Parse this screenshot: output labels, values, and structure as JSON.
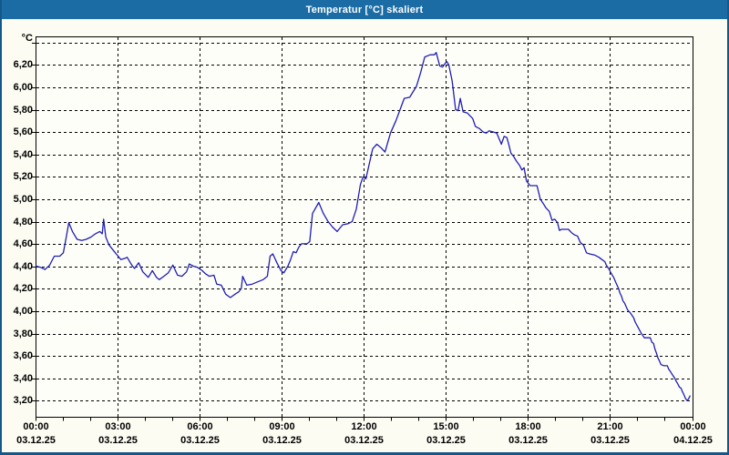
{
  "window": {
    "title": "Temperatur [°C] skaliert"
  },
  "colors": {
    "titlebar": "#1B6CA5",
    "window_border": "#14588A",
    "content_bg": "#FCFCF3",
    "plot_bg": "#FEFEF9",
    "grid": "#000000",
    "line": "#1E1EB4",
    "title_text": "#FFFFFF",
    "axis_text": "#000000"
  },
  "chart_data": {
    "type": "line",
    "title": "Temperatur [°C] skaliert",
    "unit_label": "°C",
    "xlabel": "",
    "ylabel": "°C",
    "grid": true,
    "legend_position": "none",
    "decimal_separator": ",",
    "ylim": [
      3.06,
      6.46
    ],
    "xlim_hours": [
      0,
      24
    ],
    "minor_tick_every_hours": 1,
    "y_ticks": [
      {
        "value": 6.4,
        "label": ""
      },
      {
        "value": 6.2,
        "label": "6,20"
      },
      {
        "value": 6.0,
        "label": "6,00"
      },
      {
        "value": 5.8,
        "label": "5,80"
      },
      {
        "value": 5.6,
        "label": "5,60"
      },
      {
        "value": 5.4,
        "label": "5,40"
      },
      {
        "value": 5.2,
        "label": "5,20"
      },
      {
        "value": 5.0,
        "label": "5,00"
      },
      {
        "value": 4.8,
        "label": "4,80"
      },
      {
        "value": 4.6,
        "label": "4,60"
      },
      {
        "value": 4.4,
        "label": "4,40"
      },
      {
        "value": 4.2,
        "label": "4,20"
      },
      {
        "value": 4.0,
        "label": "4,00"
      },
      {
        "value": 3.8,
        "label": "3,80"
      },
      {
        "value": 3.6,
        "label": "3,60"
      },
      {
        "value": 3.4,
        "label": "3,40"
      },
      {
        "value": 3.2,
        "label": "3,20"
      }
    ],
    "x_ticks": [
      {
        "hour": 0,
        "time": "00:00",
        "date": "03.12.25"
      },
      {
        "hour": 3,
        "time": "03:00",
        "date": "03.12.25"
      },
      {
        "hour": 6,
        "time": "06:00",
        "date": "03.12.25"
      },
      {
        "hour": 9,
        "time": "09:00",
        "date": "03.12.25"
      },
      {
        "hour": 12,
        "time": "12:00",
        "date": "03.12.25"
      },
      {
        "hour": 15,
        "time": "15:00",
        "date": "03.12.25"
      },
      {
        "hour": 18,
        "time": "18:00",
        "date": "03.12.25"
      },
      {
        "hour": 21,
        "time": "21:00",
        "date": "03.12.25"
      },
      {
        "hour": 24,
        "time": "00:00",
        "date": "04.12.25"
      }
    ],
    "series": [
      {
        "name": "Temperatur",
        "points": [
          [
            0,
            4.41
          ],
          [
            0.17,
            4.4
          ],
          [
            0.33,
            4.38
          ],
          [
            0.5,
            4.42
          ],
          [
            0.67,
            4.5
          ],
          [
            0.87,
            4.5
          ],
          [
            1,
            4.53
          ],
          [
            1.1,
            4.66
          ],
          [
            1.2,
            4.8
          ],
          [
            1.33,
            4.72
          ],
          [
            1.5,
            4.65
          ],
          [
            1.67,
            4.64
          ],
          [
            1.83,
            4.65
          ],
          [
            2,
            4.67
          ],
          [
            2.17,
            4.7
          ],
          [
            2.33,
            4.72
          ],
          [
            2.42,
            4.7
          ],
          [
            2.47,
            4.83
          ],
          [
            2.55,
            4.67
          ],
          [
            2.67,
            4.6
          ],
          [
            2.83,
            4.55
          ],
          [
            3,
            4.5
          ],
          [
            3.1,
            4.47
          ],
          [
            3.25,
            4.48
          ],
          [
            3.33,
            4.49
          ],
          [
            3.5,
            4.42
          ],
          [
            3.6,
            4.39
          ],
          [
            3.75,
            4.44
          ],
          [
            3.9,
            4.36
          ],
          [
            4.1,
            4.31
          ],
          [
            4.25,
            4.37
          ],
          [
            4.4,
            4.31
          ],
          [
            4.5,
            4.29
          ],
          [
            4.67,
            4.32
          ],
          [
            4.83,
            4.35
          ],
          [
            5,
            4.42
          ],
          [
            5.17,
            4.33
          ],
          [
            5.33,
            4.32
          ],
          [
            5.5,
            4.36
          ],
          [
            5.6,
            4.43
          ],
          [
            5.75,
            4.41
          ],
          [
            5.9,
            4.4
          ],
          [
            6.07,
            4.37
          ],
          [
            6.2,
            4.34
          ],
          [
            6.33,
            4.32
          ],
          [
            6.5,
            4.33
          ],
          [
            6.6,
            4.25
          ],
          [
            6.77,
            4.24
          ],
          [
            6.93,
            4.16
          ],
          [
            7.1,
            4.13
          ],
          [
            7.27,
            4.16
          ],
          [
            7.4,
            4.18
          ],
          [
            7.5,
            4.21
          ],
          [
            7.55,
            4.32
          ],
          [
            7.7,
            4.24
          ],
          [
            7.9,
            4.25
          ],
          [
            8.1,
            4.27
          ],
          [
            8.3,
            4.29
          ],
          [
            8.45,
            4.32
          ],
          [
            8.55,
            4.5
          ],
          [
            8.65,
            4.52
          ],
          [
            8.8,
            4.44
          ],
          [
            8.95,
            4.37
          ],
          [
            9.05,
            4.35
          ],
          [
            9.2,
            4.41
          ],
          [
            9.3,
            4.47
          ],
          [
            9.4,
            4.54
          ],
          [
            9.5,
            4.53
          ],
          [
            9.6,
            4.58
          ],
          [
            9.7,
            4.61
          ],
          [
            9.9,
            4.61
          ],
          [
            10,
            4.63
          ],
          [
            10.1,
            4.88
          ],
          [
            10.33,
            4.98
          ],
          [
            10.5,
            4.88
          ],
          [
            10.67,
            4.81
          ],
          [
            10.83,
            4.76
          ],
          [
            11,
            4.72
          ],
          [
            11.2,
            4.78
          ],
          [
            11.4,
            4.79
          ],
          [
            11.55,
            4.81
          ],
          [
            11.7,
            4.92
          ],
          [
            11.85,
            5.14
          ],
          [
            11.95,
            5.21
          ],
          [
            12.05,
            5.19
          ],
          [
            12.3,
            5.46
          ],
          [
            12.45,
            5.5
          ],
          [
            12.6,
            5.47
          ],
          [
            12.75,
            5.43
          ],
          [
            12.95,
            5.6
          ],
          [
            13.15,
            5.71
          ],
          [
            13.45,
            5.91
          ],
          [
            13.65,
            5.92
          ],
          [
            13.9,
            6.02
          ],
          [
            14.05,
            6.14
          ],
          [
            14.2,
            6.28
          ],
          [
            14.4,
            6.3
          ],
          [
            14.55,
            6.3
          ],
          [
            14.62,
            6.32
          ],
          [
            14.75,
            6.2
          ],
          [
            14.85,
            6.19
          ],
          [
            15,
            6.24
          ],
          [
            15.08,
            6.21
          ],
          [
            15.2,
            6.07
          ],
          [
            15.33,
            5.81
          ],
          [
            15.42,
            5.8
          ],
          [
            15.5,
            5.91
          ],
          [
            15.6,
            5.79
          ],
          [
            15.75,
            5.78
          ],
          [
            15.95,
            5.73
          ],
          [
            16.05,
            5.66
          ],
          [
            16.2,
            5.64
          ],
          [
            16.33,
            5.61
          ],
          [
            16.45,
            5.6
          ],
          [
            16.55,
            5.62
          ],
          [
            16.7,
            5.61
          ],
          [
            16.83,
            5.6
          ],
          [
            16.95,
            5.53
          ],
          [
            17,
            5.5
          ],
          [
            17.1,
            5.57
          ],
          [
            17.2,
            5.56
          ],
          [
            17.28,
            5.49
          ],
          [
            17.35,
            5.42
          ],
          [
            17.45,
            5.39
          ],
          [
            17.55,
            5.35
          ],
          [
            17.67,
            5.31
          ],
          [
            17.75,
            5.27
          ],
          [
            17.83,
            5.29
          ],
          [
            17.92,
            5.17
          ],
          [
            18.05,
            5.13
          ],
          [
            18.3,
            5.13
          ],
          [
            18.42,
            5.01
          ],
          [
            18.53,
            4.97
          ],
          [
            18.63,
            4.93
          ],
          [
            18.75,
            4.9
          ],
          [
            18.85,
            4.82
          ],
          [
            18.95,
            4.83
          ],
          [
            19.05,
            4.8
          ],
          [
            19.12,
            4.73
          ],
          [
            19.2,
            4.74
          ],
          [
            19.45,
            4.74
          ],
          [
            19.56,
            4.71
          ],
          [
            19.67,
            4.69
          ],
          [
            19.78,
            4.68
          ],
          [
            19.89,
            4.62
          ],
          [
            20,
            4.6
          ],
          [
            20.11,
            4.53
          ],
          [
            20.22,
            4.52
          ],
          [
            20.4,
            4.51
          ],
          [
            20.56,
            4.49
          ],
          [
            20.67,
            4.47
          ],
          [
            20.78,
            4.45
          ],
          [
            20.83,
            4.42
          ],
          [
            20.94,
            4.38
          ],
          [
            21,
            4.35
          ],
          [
            21.1,
            4.31
          ],
          [
            21.17,
            4.27
          ],
          [
            21.28,
            4.21
          ],
          [
            21.33,
            4.17
          ],
          [
            21.39,
            4.14
          ],
          [
            21.44,
            4.1
          ],
          [
            21.5,
            4.08
          ],
          [
            21.61,
            4.02
          ],
          [
            21.72,
            3.99
          ],
          [
            21.83,
            3.95
          ],
          [
            21.89,
            3.91
          ],
          [
            22,
            3.86
          ],
          [
            22.11,
            3.81
          ],
          [
            22.17,
            3.79
          ],
          [
            22.22,
            3.77
          ],
          [
            22.44,
            3.77
          ],
          [
            22.5,
            3.73
          ],
          [
            22.56,
            3.72
          ],
          [
            22.61,
            3.67
          ],
          [
            22.67,
            3.63
          ],
          [
            22.72,
            3.59
          ],
          [
            22.78,
            3.56
          ],
          [
            22.83,
            3.53
          ],
          [
            22.94,
            3.52
          ],
          [
            23.06,
            3.52
          ],
          [
            23.11,
            3.49
          ],
          [
            23.17,
            3.47
          ],
          [
            23.22,
            3.45
          ],
          [
            23.33,
            3.41
          ],
          [
            23.39,
            3.38
          ],
          [
            23.44,
            3.36
          ],
          [
            23.5,
            3.33
          ],
          [
            23.56,
            3.32
          ],
          [
            23.61,
            3.29
          ],
          [
            23.67,
            3.26
          ],
          [
            23.72,
            3.23
          ],
          [
            23.78,
            3.21
          ],
          [
            23.83,
            3.22
          ],
          [
            23.89,
            3.25
          ]
        ]
      }
    ]
  }
}
